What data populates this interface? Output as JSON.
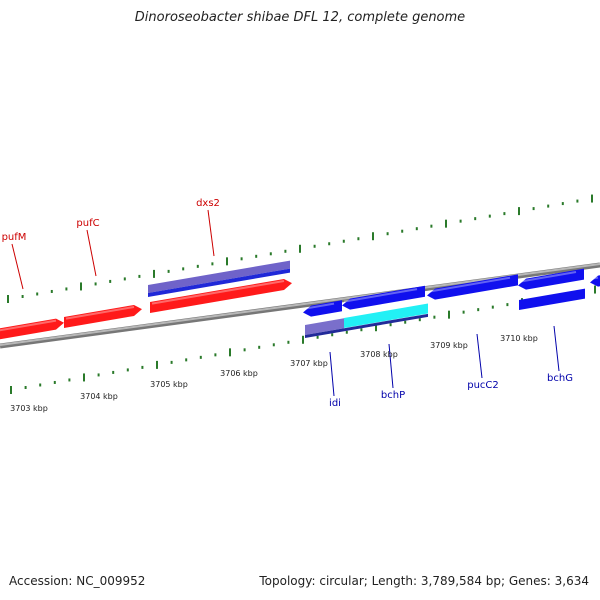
{
  "title": "Dinoroseobacter shibae DFL 12, complete genome",
  "footer": {
    "accession": "Accession: NC_009952",
    "stats": "Topology: circular; Length: 3,789,584 bp; Genes: 3,634"
  },
  "colors": {
    "forward_gene": "#ff1a1a",
    "reverse_gene": "#1010ee",
    "forward_label": "#cc0000",
    "reverse_label": "#0000aa",
    "backbone": "#8a8a8a",
    "tick": "#2a7a2a",
    "cds_forward": "#6f63c9",
    "cds_reverse": "#7a6fcb",
    "highlight": "#22f0f5"
  },
  "scale": {
    "unit": "kbp",
    "labels": [
      "3703 kbp",
      "3704 kbp",
      "3705 kbp",
      "3706 kbp",
      "3707 kbp",
      "3708 kbp",
      "3709 kbp",
      "3710 kbp"
    ]
  },
  "forward_genes": [
    {
      "label": "pufM",
      "has_arrow": false
    },
    {
      "label": "pufC",
      "has_arrow": true
    },
    {
      "label": "dxs2",
      "has_arrow": true
    }
  ],
  "reverse_genes": [
    {
      "label": "idi"
    },
    {
      "label": "bchP"
    },
    {
      "label": "pucC2"
    },
    {
      "label": "bchG"
    },
    {
      "label": ""
    }
  ]
}
